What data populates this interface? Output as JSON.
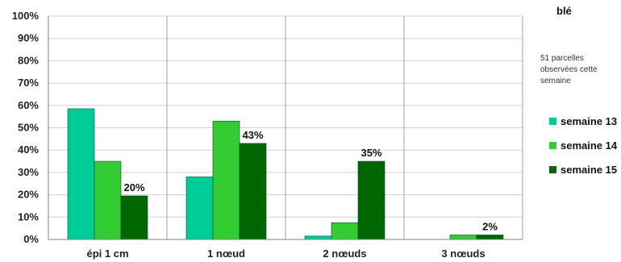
{
  "chart_data": {
    "type": "bar",
    "corner_title": "blé",
    "note_lines": [
      "51 parcelles",
      "observées cette",
      "semaine"
    ],
    "categories": [
      "épi 1 cm",
      "1 nœud",
      "2 nœuds",
      "3 nœuds"
    ],
    "ylim": [
      0,
      100
    ],
    "yticks": [
      "0%",
      "10%",
      "20%",
      "30%",
      "40%",
      "50%",
      "60%",
      "70%",
      "80%",
      "90%",
      "100%"
    ],
    "grid": true,
    "legend_position": "right",
    "series": [
      {
        "name": "semaine 13",
        "color": "#00cc99",
        "values": [
          58.5,
          28,
          1.5,
          0
        ]
      },
      {
        "name": "semaine 14",
        "color": "#33cc33",
        "values": [
          35,
          53,
          7.5,
          2
        ]
      },
      {
        "name": "semaine 15",
        "color": "#006600",
        "values": [
          19.5,
          43,
          35,
          2
        ]
      }
    ],
    "data_labels": [
      {
        "category": 0,
        "series": 2,
        "text": "20%"
      },
      {
        "category": 1,
        "series": 2,
        "text": "43%"
      },
      {
        "category": 2,
        "series": 2,
        "text": "35%"
      },
      {
        "category": 3,
        "series": 2,
        "text": "2%"
      }
    ]
  }
}
